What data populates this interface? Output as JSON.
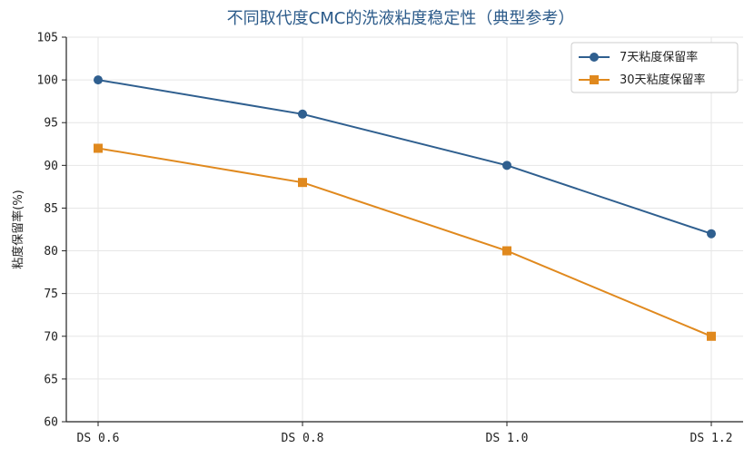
{
  "chart_data": {
    "type": "line",
    "title": "不同取代度CMC的洗液粘度稳定性（典型参考）",
    "xlabel": "",
    "ylabel": "粘度保留率(%)",
    "categories": [
      "DS 0.6",
      "DS 0.8",
      "DS 1.0",
      "DS 1.2"
    ],
    "ylim": [
      60,
      105
    ],
    "yticks": [
      "60",
      "65",
      "70",
      "75",
      "80",
      "85",
      "90",
      "95",
      "100",
      "105"
    ],
    "grid": true,
    "legend_position": "top-right",
    "series": [
      {
        "name": "7天粘度保留率",
        "values": [
          100,
          96,
          90,
          82
        ],
        "color": "#2f5f8f",
        "marker": "circle"
      },
      {
        "name": "30天粘度保留率",
        "values": [
          92,
          88,
          80,
          70
        ],
        "color": "#e0891e",
        "marker": "square"
      }
    ]
  }
}
